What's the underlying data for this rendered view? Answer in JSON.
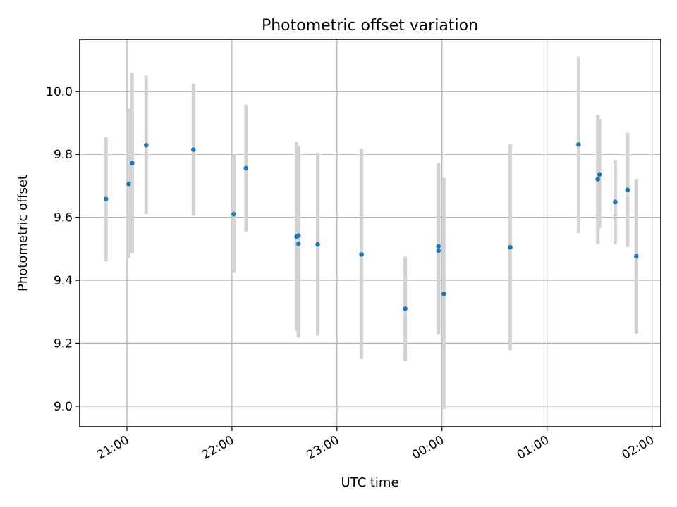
{
  "chart_data": {
    "type": "scatter",
    "title": "Photometric offset variation",
    "xlabel": "UTC time",
    "ylabel": "Photometric offset",
    "x_unit": "UTC clock time (hours past midnight; previous evening shown as 20.x–23.x, next morning as 24.x–26.x)",
    "xlim": [
      "20:33",
      "02:05"
    ],
    "ylim": [
      8.935,
      10.165
    ],
    "x_ticks": [
      {
        "label": "21:00",
        "value": "21:00"
      },
      {
        "label": "22:00",
        "value": "22:00"
      },
      {
        "label": "23:00",
        "value": "23:00"
      },
      {
        "label": "00:00",
        "value": "00:00"
      },
      {
        "label": "01:00",
        "value": "01:00"
      },
      {
        "label": "02:00",
        "value": "02:00"
      }
    ],
    "y_ticks": [
      {
        "label": "9.0",
        "value": 9.0
      },
      {
        "label": "9.2",
        "value": 9.2
      },
      {
        "label": "9.4",
        "value": 9.4
      },
      {
        "label": "9.6",
        "value": 9.6
      },
      {
        "label": "9.8",
        "value": 9.8
      },
      {
        "label": "10.0",
        "value": 10.0
      }
    ],
    "grid": true,
    "colors": {
      "point": "#1f77b4",
      "errorbar": "#d3d3d3",
      "grid": "#b0b0b0"
    },
    "series": [
      {
        "marker": "point",
        "points": [
          {
            "t": "20:48",
            "y": 9.658,
            "lo": 9.46,
            "hi": 9.855
          },
          {
            "t": "21:01",
            "y": 9.706,
            "lo": 9.47,
            "hi": 9.945
          },
          {
            "t": "21:03",
            "y": 9.772,
            "lo": 9.485,
            "hi": 10.06
          },
          {
            "t": "21:11",
            "y": 9.829,
            "lo": 9.61,
            "hi": 10.05
          },
          {
            "t": "21:38",
            "y": 9.815,
            "lo": 9.605,
            "hi": 10.025
          },
          {
            "t": "22:01",
            "y": 9.61,
            "lo": 9.425,
            "hi": 9.8
          },
          {
            "t": "22:08",
            "y": 9.756,
            "lo": 9.555,
            "hi": 9.958
          },
          {
            "t": "22:37",
            "y": 9.539,
            "lo": 9.24,
            "hi": 9.84
          },
          {
            "t": "22:38",
            "y": 9.542,
            "lo": 9.218,
            "hi": 9.825
          },
          {
            "t": "22:38",
            "y": 9.516,
            "lo": 9.218,
            "hi": 9.825
          },
          {
            "t": "22:49",
            "y": 9.514,
            "lo": 9.225,
            "hi": 9.805
          },
          {
            "t": "23:14",
            "y": 9.482,
            "lo": 9.15,
            "hi": 9.818
          },
          {
            "t": "23:39",
            "y": 9.31,
            "lo": 9.145,
            "hi": 9.475
          },
          {
            "t": "23:58",
            "y": 9.494,
            "lo": 9.228,
            "hi": 9.765
          },
          {
            "t": "23:58",
            "y": 9.508,
            "lo": 9.245,
            "hi": 9.772
          },
          {
            "t": "00:01",
            "y": 9.357,
            "lo": 8.99,
            "hi": 9.725
          },
          {
            "t": "00:39",
            "y": 9.505,
            "lo": 9.178,
            "hi": 9.832
          },
          {
            "t": "01:18",
            "y": 9.831,
            "lo": 9.55,
            "hi": 10.11
          },
          {
            "t": "01:29",
            "y": 9.721,
            "lo": 9.515,
            "hi": 9.925
          },
          {
            "t": "01:30",
            "y": 9.736,
            "lo": 9.565,
            "hi": 9.912
          },
          {
            "t": "01:39",
            "y": 9.649,
            "lo": 9.515,
            "hi": 9.782
          },
          {
            "t": "01:46",
            "y": 9.687,
            "lo": 9.505,
            "hi": 9.868
          },
          {
            "t": "01:51",
            "y": 9.476,
            "lo": 9.23,
            "hi": 9.722
          }
        ]
      }
    ]
  }
}
